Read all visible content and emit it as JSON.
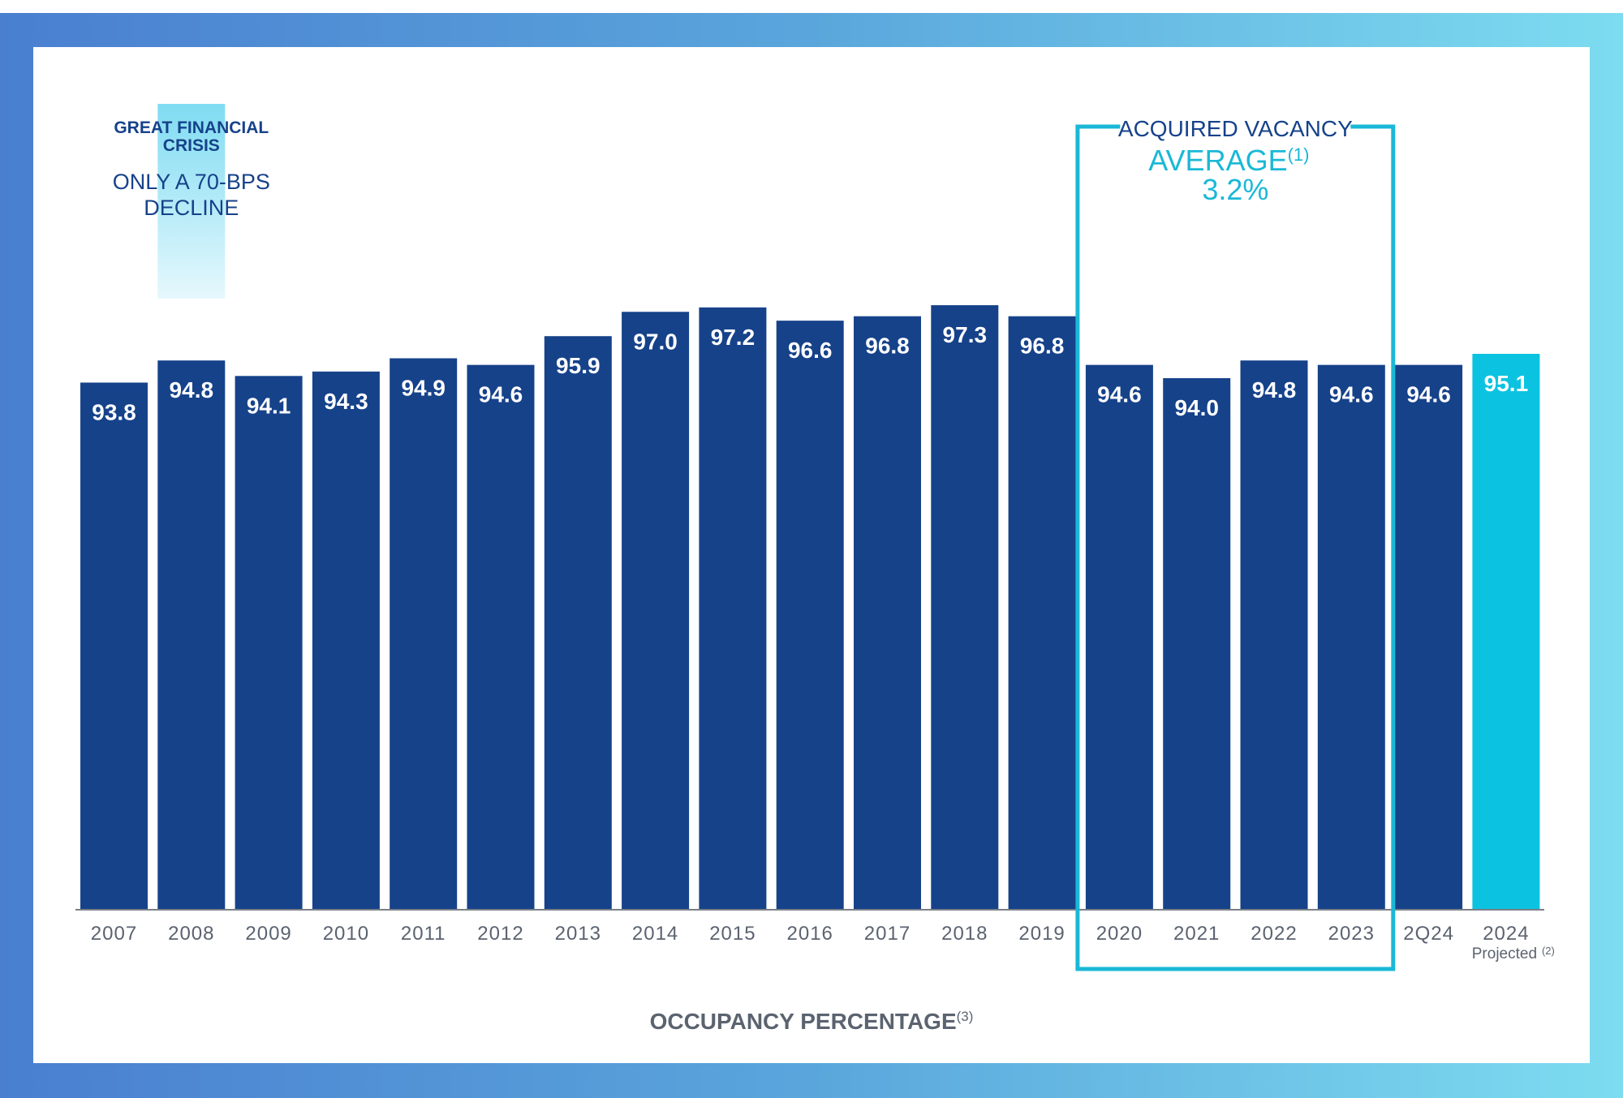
{
  "chart_data": {
    "type": "bar",
    "categories": [
      "2007",
      "2008",
      "2009",
      "2010",
      "2011",
      "2012",
      "2013",
      "2014",
      "2015",
      "2016",
      "2017",
      "2018",
      "2019",
      "2020",
      "2021",
      "2022",
      "2023",
      "2Q24",
      "2024"
    ],
    "category_sublabels": {
      "2024": "Projected",
      "2024_note": "(2)"
    },
    "values": [
      93.8,
      94.8,
      94.1,
      94.3,
      94.9,
      94.6,
      95.9,
      97.0,
      97.2,
      96.6,
      96.8,
      97.3,
      96.8,
      94.6,
      94.0,
      94.8,
      94.6,
      94.6,
      95.1
    ],
    "value_labels": [
      "93.8",
      "94.8",
      "94.1",
      "94.3",
      "94.9",
      "94.6",
      "95.9",
      "97.0",
      "97.2",
      "96.6",
      "96.8",
      "97.3",
      "96.8",
      "94.6",
      "94.0",
      "94.8",
      "94.6",
      "94.6",
      "95.1"
    ],
    "title": "OCCUPANCY PERCENTAGE",
    "title_note": "(3)",
    "highlight_last_color": "#0bc3e0",
    "bar_color": "#16428a",
    "annotations": {
      "gfc": {
        "line1": "GREAT FINANCIAL",
        "line2": "CRISIS",
        "line3": "ONLY A 70-BPS",
        "line4": "DECLINE",
        "spans": [
          "2008",
          "2009"
        ]
      },
      "acquired": {
        "title": "ACQUIRED VACANCY",
        "avg_label": "AVERAGE",
        "avg_note": "(1)",
        "avg_value": "3.2%",
        "spans": [
          "2020",
          "2023"
        ],
        "color": "#1ab8d6"
      }
    }
  }
}
